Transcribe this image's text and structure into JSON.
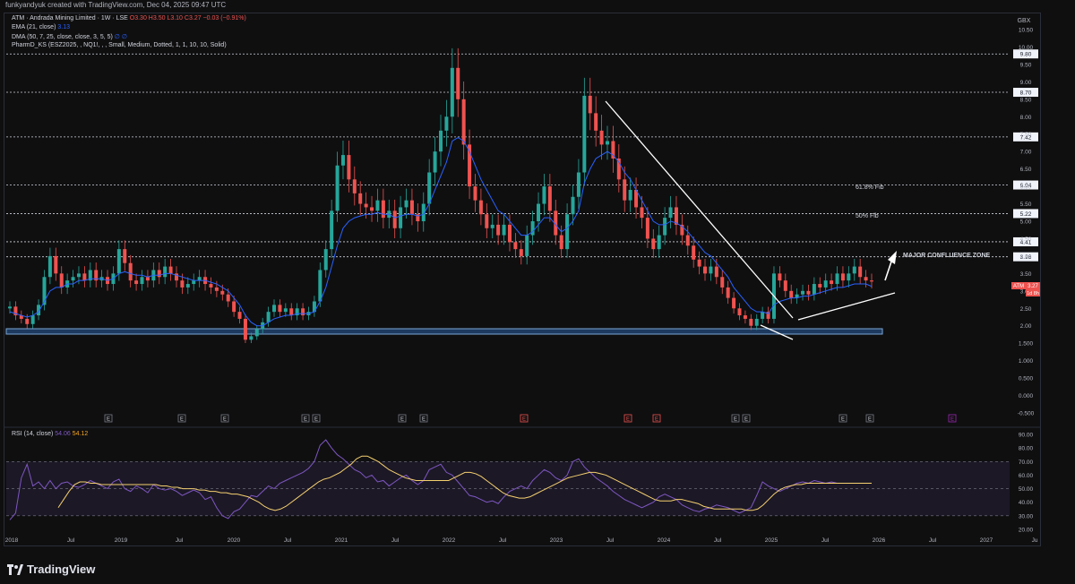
{
  "header": {
    "credit": "funkyandyuk created with TradingView.com, Dec 04, 2025 09:47 UTC"
  },
  "legend": {
    "symbol_line": "ATM · Andrada Mining Limited · 1W · LSE",
    "o": "O3.30",
    "h": "H3.50",
    "l": "L3.10",
    "c": "C3.27",
    "chg": "−0.03 (−0.91%)",
    "ema": "EMA (21, close)",
    "ema_val": "3.13",
    "dma": "DMA (50, 7, 25, close, close, 3, 5, 5)",
    "dma_val": "∅ ∅",
    "pharm": "PharmD_KS (ESZ2025, , NQ1!, , , Small, Medium, Dotted, 1, 1, 10, 10, Solid)",
    "rsi": "RSI (14, close)",
    "rsi_v1": "54.06",
    "rsi_v2": "54.12"
  },
  "colors": {
    "up": "#26a69a",
    "down": "#ef5350",
    "ema": "#2962ff",
    "rsi": "#7e57c2",
    "rsi_ma": "#f5d06f",
    "price_badge": "#ef5350"
  },
  "chart_data": [
    {
      "type": "candlestick",
      "currency": "GBX",
      "ylim": [
        -0.5,
        10.5
      ],
      "x_ticks": [
        "2018",
        "Jul",
        "2019",
        "Jul",
        "2020",
        "Jul",
        "2021",
        "Jul",
        "2022",
        "Jul",
        "2023",
        "Jul",
        "2024",
        "Jul",
        "2025",
        "Jul",
        "2026",
        "Jul",
        "2027",
        "Ju"
      ],
      "y_ticks": [
        "10.50",
        "10.00",
        "9.50",
        "9.00",
        "8.50",
        "8.00",
        "7.50",
        "7.00",
        "6.50",
        "6.00",
        "5.50",
        "5.00",
        "4.50",
        "4.00",
        "3.50",
        "3.00",
        "2.50",
        "2.00",
        "1.500",
        "1.000",
        "0.500",
        "0.000",
        "-0.500"
      ],
      "levels": [
        {
          "value": 9.8,
          "label": "9.80"
        },
        {
          "value": 8.7,
          "label": "8.70"
        },
        {
          "value": 7.42,
          "label": "7.42"
        },
        {
          "value": 6.04,
          "label": "6.04"
        },
        {
          "value": 5.22,
          "label": "5.22"
        },
        {
          "value": 4.41,
          "label": "4.41"
        },
        {
          "value": 3.98,
          "label": "3.98"
        }
      ],
      "last_price": {
        "ticker": "ATM",
        "value": "3.27",
        "countdown": "1d 8h",
        "y": 3.27
      },
      "annotations": [
        "61.8% Fib",
        "50% Fib",
        "MAJOR CONFLUENCE ZONE"
      ],
      "event_markers": [
        "E",
        "E",
        "E",
        "E",
        "E",
        "E",
        "E",
        "E",
        "E",
        "E",
        "E",
        "E",
        "E",
        "E",
        "E"
      ],
      "close_series": [
        2.55,
        2.3,
        2.2,
        2.05,
        2.3,
        2.6,
        3.4,
        4.0,
        3.5,
        3.1,
        3.3,
        3.4,
        3.5,
        3.3,
        3.6,
        3.3,
        3.4,
        3.2,
        3.5,
        4.2,
        3.8,
        3.3,
        3.2,
        3.4,
        3.3,
        3.6,
        3.4,
        3.7,
        3.5,
        3.3,
        3.1,
        3.2,
        3.3,
        3.4,
        3.2,
        3.1,
        3.0,
        2.9,
        2.7,
        2.4,
        2.2,
        1.6,
        1.7,
        1.9,
        2.1,
        2.4,
        2.6,
        2.4,
        2.5,
        2.3,
        2.5,
        2.3,
        2.4,
        2.7,
        3.6,
        4.2,
        5.3,
        6.6,
        6.9,
        6.2,
        5.8,
        5.5,
        5.4,
        5.3,
        5.6,
        5.1,
        5.3,
        4.8,
        5.4,
        5.6,
        5.2,
        5.0,
        5.5,
        6.4,
        7.0,
        7.6,
        8.0,
        9.4,
        8.5,
        7.2,
        6.0,
        5.6,
        5.2,
        4.8,
        4.9,
        4.6,
        4.9,
        4.4,
        4.2,
        4.0,
        4.6,
        5.0,
        5.5,
        6.0,
        5.3,
        4.6,
        4.2,
        5.2,
        5.7,
        6.4,
        8.6,
        8.1,
        7.6,
        7.2,
        7.3,
        6.8,
        6.2,
        5.6,
        5.9,
        5.4,
        5.1,
        4.5,
        4.2,
        4.6,
        5.1,
        5.4,
        4.9,
        4.6,
        4.3,
        3.9,
        3.7,
        3.5,
        3.7,
        3.4,
        3.1,
        2.8,
        2.5,
        2.3,
        2.2,
        2.0,
        2.2,
        2.4,
        2.2,
        3.5,
        3.3,
        3.0,
        2.8,
        2.9,
        3.0,
        2.9,
        3.2,
        3.1,
        3.3,
        3.2,
        3.5,
        3.3,
        3.5,
        3.7,
        3.4,
        3.3,
        3.27
      ],
      "ema_series": [
        2.4,
        2.35,
        2.3,
        2.25,
        2.3,
        2.4,
        2.7,
        3.0,
        3.1,
        3.1,
        3.2,
        3.2,
        3.3,
        3.3,
        3.35,
        3.35,
        3.35,
        3.3,
        3.35,
        3.5,
        3.55,
        3.5,
        3.45,
        3.45,
        3.4,
        3.45,
        3.45,
        3.5,
        3.5,
        3.45,
        3.4,
        3.35,
        3.3,
        3.3,
        3.3,
        3.25,
        3.2,
        3.1,
        3.0,
        2.8,
        2.6,
        2.3,
        2.1,
        2.0,
        2.0,
        2.1,
        2.2,
        2.25,
        2.3,
        2.3,
        2.35,
        2.35,
        2.35,
        2.4,
        2.7,
        3.1,
        3.7,
        4.3,
        4.8,
        5.0,
        5.1,
        5.15,
        5.2,
        5.2,
        5.25,
        5.2,
        5.2,
        5.1,
        5.15,
        5.2,
        5.2,
        5.15,
        5.2,
        5.5,
        5.9,
        6.3,
        6.7,
        7.3,
        7.4,
        7.3,
        7.0,
        6.6,
        6.2,
        5.9,
        5.6,
        5.3,
        5.2,
        5.0,
        4.8,
        4.6,
        4.6,
        4.7,
        4.9,
        5.1,
        5.1,
        4.9,
        4.7,
        4.8,
        5.0,
        5.3,
        6.1,
        6.5,
        6.8,
        6.9,
        7.0,
        6.9,
        6.7,
        6.4,
        6.2,
        5.9,
        5.6,
        5.3,
        5.0,
        4.9,
        4.9,
        5.0,
        4.95,
        4.85,
        4.7,
        4.5,
        4.3,
        4.1,
        4.0,
        3.8,
        3.6,
        3.4,
        3.1,
        2.9,
        2.7,
        2.5,
        2.4,
        2.4,
        2.35,
        2.6,
        2.7,
        2.75,
        2.8,
        2.8,
        2.85,
        2.85,
        2.9,
        2.95,
        3.0,
        3.05,
        3.1,
        3.1,
        3.15,
        3.2,
        3.2,
        3.2,
        3.13
      ]
    },
    {
      "type": "line",
      "title": "RSI (14, close)",
      "ylim": [
        20,
        90
      ],
      "y_ticks": [
        "90.00",
        "80.00",
        "70.00",
        "60.00",
        "50.00",
        "40.00",
        "30.00",
        "20.00"
      ],
      "band": [
        30,
        70
      ],
      "rsi_series": [
        27,
        32,
        58,
        68,
        52,
        55,
        50,
        56,
        50,
        54,
        55,
        52,
        51,
        53,
        56,
        54,
        52,
        50,
        55,
        57,
        50,
        48,
        52,
        50,
        47,
        53,
        50,
        49,
        50,
        48,
        45,
        47,
        49,
        47,
        42,
        44,
        36,
        30,
        28,
        33,
        35,
        40,
        45,
        44,
        48,
        52,
        50,
        54,
        56,
        58,
        60,
        62,
        65,
        70,
        82,
        86,
        80,
        75,
        72,
        68,
        64,
        62,
        58,
        60,
        55,
        56,
        52,
        55,
        58,
        60,
        56,
        53,
        56,
        64,
        66,
        68,
        62,
        60,
        55,
        50,
        45,
        44,
        42,
        40,
        41,
        39,
        44,
        48,
        50,
        52,
        50,
        56,
        60,
        64,
        62,
        58,
        56,
        60,
        70,
        72,
        66,
        62,
        58,
        55,
        52,
        48,
        45,
        42,
        40,
        38,
        36,
        38,
        40,
        44,
        46,
        44,
        42,
        38,
        36,
        34,
        33,
        35,
        36,
        38,
        37,
        36,
        34,
        32,
        34,
        36,
        45,
        55,
        52,
        50,
        48,
        50,
        52,
        54,
        55,
        54,
        56,
        55,
        54,
        55,
        54,
        54,
        54,
        54,
        54,
        54,
        54
      ],
      "rsi_ma_series": [
        36,
        42,
        48,
        53,
        55,
        55,
        54,
        54,
        53,
        53,
        53,
        53,
        53,
        53,
        53,
        53,
        53,
        53,
        53,
        52,
        52,
        51,
        51,
        50,
        50,
        50,
        49,
        49,
        48,
        48,
        47,
        47,
        46,
        46,
        45,
        44,
        42,
        40,
        37,
        35,
        34,
        35,
        37,
        40,
        43,
        46,
        49,
        52,
        55,
        57,
        58,
        60,
        62,
        65,
        68,
        72,
        74,
        74,
        72,
        70,
        67,
        64,
        62,
        60,
        58,
        57,
        56,
        56,
        56,
        56,
        56,
        56,
        56,
        58,
        60,
        62,
        62,
        61,
        59,
        56,
        53,
        50,
        47,
        45,
        44,
        43,
        43,
        44,
        46,
        48,
        50,
        52,
        54,
        56,
        58,
        59,
        60,
        61,
        62,
        62,
        61,
        60,
        58,
        56,
        54,
        52,
        50,
        48,
        46,
        44,
        42,
        41,
        41,
        41,
        42,
        42,
        41,
        40,
        39,
        37,
        36,
        35,
        35,
        35,
        35,
        35,
        35,
        34,
        34,
        35,
        38,
        42,
        46,
        49,
        51,
        52,
        53,
        53,
        54,
        54,
        54,
        54,
        54,
        54,
        54,
        54,
        54,
        54,
        54,
        54,
        54
      ]
    }
  ]
}
